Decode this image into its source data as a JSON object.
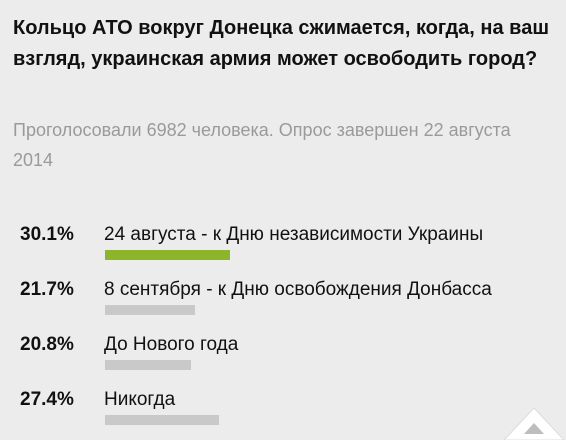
{
  "poll": {
    "question": "Кольцо АТО вокруг Донецка сжимается, когда, на ваш взгляд, украинская армия может освободить город?",
    "status": "Проголосовали 6982 человека. Опрос завершен 22 августа 2014",
    "options": [
      {
        "percent_label": "30.1%",
        "label": "24 августа - к Дню независимости Украины",
        "value": 30.1,
        "leading": true
      },
      {
        "percent_label": "21.7%",
        "label": "8 сентября - к Дню освобождения Донбасса",
        "value": 21.7,
        "leading": false
      },
      {
        "percent_label": "20.8%",
        "label": "До Нового года",
        "value": 20.8,
        "leading": false
      },
      {
        "percent_label": "27.4%",
        "label": "Никогда",
        "value": 27.4,
        "leading": false
      }
    ]
  },
  "colors": {
    "leading_bar": "#8db52b",
    "bar": "#c9c9c9",
    "background": "#ececec"
  },
  "icons": {
    "corner": "scroll-up-icon"
  }
}
